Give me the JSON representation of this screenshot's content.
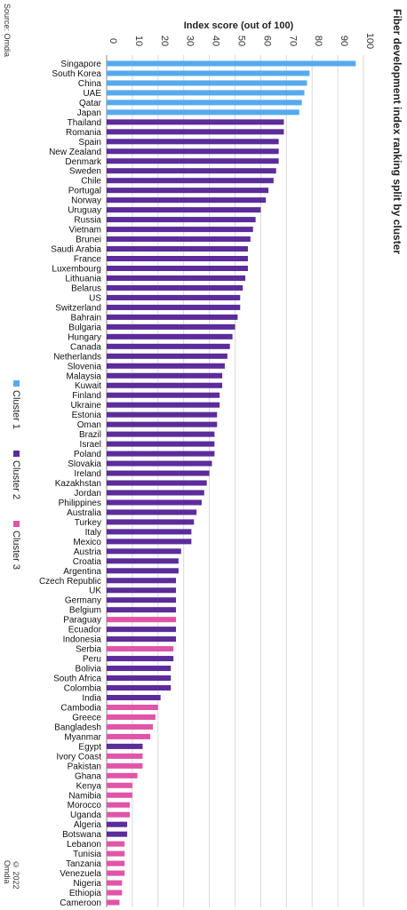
{
  "title": "Fiber development index ranking split by cluster",
  "source": "Source: Omdia",
  "copyright": "© 2022 Omdia",
  "colors": {
    "Cluster 1": "#55aaee",
    "Cluster 2": "#5b2c9a",
    "Cluster 3": "#e055a8"
  },
  "chart_data": {
    "type": "bar",
    "orientation": "horizontal",
    "xlabel": "Index score (out of 100)",
    "xlim": [
      0,
      100
    ],
    "xticks": [
      0,
      10,
      20,
      30,
      40,
      50,
      60,
      70,
      80,
      90,
      100
    ],
    "grid": true,
    "legend": [
      "Cluster 1",
      "Cluster 2",
      "Cluster 3"
    ],
    "categories": [
      "Singapore",
      "South Korea",
      "China",
      "UAE",
      "Qatar",
      "Japan",
      "Thailand",
      "Romania",
      "Spain",
      "New Zealand",
      "Denmark",
      "Sweden",
      "Chile",
      "Portugal",
      "Norway",
      "Uruguay",
      "Russia",
      "Vietnam",
      "Brunei",
      "Saudi Arabia",
      "France",
      "Luxembourg",
      "Lithuania",
      "Belarus",
      "US",
      "Switzerland",
      "Bahrain",
      "Bulgaria",
      "Hungary",
      "Canada",
      "Netherlands",
      "Slovenia",
      "Malaysia",
      "Kuwait",
      "Finland",
      "Ukraine",
      "Estonia",
      "Oman",
      "Brazil",
      "Israel",
      "Poland",
      "Slovakia",
      "Ireland",
      "Kazakhstan",
      "Jordan",
      "Philippines",
      "Australia",
      "Turkey",
      "Italy",
      "Mexico",
      "Austria",
      "Croatia",
      "Argentina",
      "Czech Republic",
      "UK",
      "Germany",
      "Belgium",
      "Paraguay",
      "Ecuador",
      "Indonesia",
      "Serbia",
      "Peru",
      "Bolivia",
      "South Africa",
      "Colombia",
      "India",
      "Cambodia",
      "Greece",
      "Bangladesh",
      "Myanmar",
      "Egypt",
      "Ivory Coast",
      "Pakistan",
      "Ghana",
      "Kenya",
      "Namibia",
      "Morocco",
      "Uganda",
      "Algeria",
      "Botswana",
      "Lebanon",
      "Tunisia",
      "Tanzania",
      "Venezuela",
      "Nigeria",
      "Ethiopia",
      "Cameroon"
    ],
    "values": [
      97,
      79,
      78,
      77,
      76,
      75,
      69,
      69,
      67,
      67,
      67,
      66,
      65,
      63,
      62,
      60,
      58,
      57,
      56,
      55,
      55,
      55,
      54,
      53,
      52,
      52,
      51,
      50,
      49,
      48,
      47,
      46,
      45,
      45,
      44,
      44,
      43,
      43,
      42,
      42,
      42,
      41,
      40,
      39,
      38,
      37,
      35,
      34,
      33,
      33,
      29,
      28,
      28,
      27,
      27,
      27,
      27,
      27,
      27,
      27,
      26,
      26,
      25,
      25,
      25,
      21,
      20,
      19,
      18,
      17,
      14,
      14,
      14,
      12,
      10,
      10,
      9,
      9,
      8,
      8,
      7,
      7,
      7,
      7,
      6,
      6,
      5
    ],
    "clusters": [
      "Cluster 1",
      "Cluster 1",
      "Cluster 1",
      "Cluster 1",
      "Cluster 1",
      "Cluster 1",
      "Cluster 2",
      "Cluster 2",
      "Cluster 2",
      "Cluster 2",
      "Cluster 2",
      "Cluster 2",
      "Cluster 2",
      "Cluster 2",
      "Cluster 2",
      "Cluster 2",
      "Cluster 2",
      "Cluster 2",
      "Cluster 2",
      "Cluster 2",
      "Cluster 2",
      "Cluster 2",
      "Cluster 2",
      "Cluster 2",
      "Cluster 2",
      "Cluster 2",
      "Cluster 2",
      "Cluster 2",
      "Cluster 2",
      "Cluster 2",
      "Cluster 2",
      "Cluster 2",
      "Cluster 2",
      "Cluster 2",
      "Cluster 2",
      "Cluster 2",
      "Cluster 2",
      "Cluster 2",
      "Cluster 2",
      "Cluster 2",
      "Cluster 2",
      "Cluster 2",
      "Cluster 2",
      "Cluster 2",
      "Cluster 2",
      "Cluster 2",
      "Cluster 2",
      "Cluster 2",
      "Cluster 2",
      "Cluster 2",
      "Cluster 2",
      "Cluster 2",
      "Cluster 2",
      "Cluster 2",
      "Cluster 2",
      "Cluster 2",
      "Cluster 2",
      "Cluster 3",
      "Cluster 2",
      "Cluster 2",
      "Cluster 3",
      "Cluster 2",
      "Cluster 2",
      "Cluster 2",
      "Cluster 2",
      "Cluster 2",
      "Cluster 3",
      "Cluster 3",
      "Cluster 3",
      "Cluster 3",
      "Cluster 2",
      "Cluster 3",
      "Cluster 3",
      "Cluster 3",
      "Cluster 3",
      "Cluster 3",
      "Cluster 3",
      "Cluster 3",
      "Cluster 2",
      "Cluster 2",
      "Cluster 3",
      "Cluster 3",
      "Cluster 3",
      "Cluster 3",
      "Cluster 3",
      "Cluster 3",
      "Cluster 3"
    ]
  }
}
